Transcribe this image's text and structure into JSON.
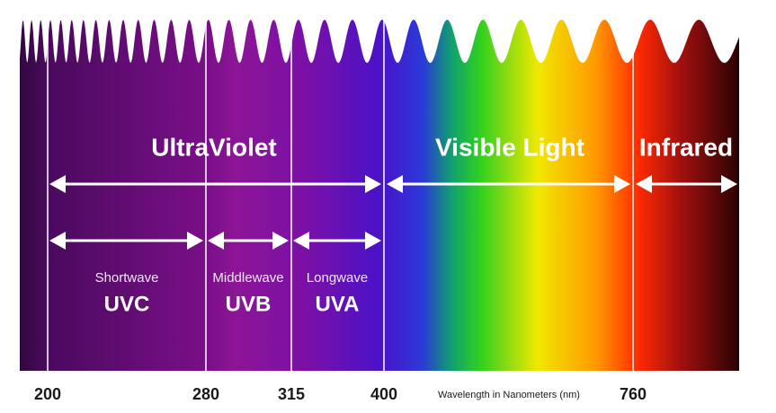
{
  "regions": [
    {
      "label": "UltraViolet"
    },
    {
      "label": "Visible Light"
    },
    {
      "label": "Infrared"
    }
  ],
  "bands": [
    {
      "name": "Shortwave",
      "code": "UVC"
    },
    {
      "name": "Middlewave",
      "code": "UVB"
    },
    {
      "name": "Longwave",
      "code": "UVA"
    }
  ],
  "axis": {
    "ticks": [
      200,
      280,
      315,
      400,
      760
    ],
    "label": "Wavelength in Nanometers (nm)"
  }
}
